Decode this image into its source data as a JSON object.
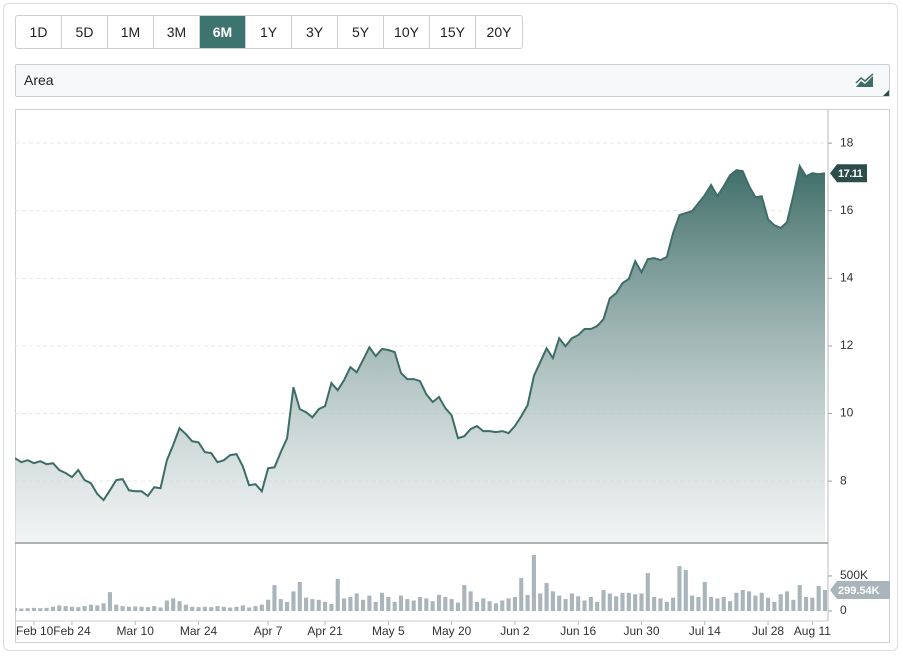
{
  "range_buttons": [
    {
      "label": "1D",
      "active": false
    },
    {
      "label": "5D",
      "active": false
    },
    {
      "label": "1M",
      "active": false
    },
    {
      "label": "3M",
      "active": false
    },
    {
      "label": "6M",
      "active": true
    },
    {
      "label": "1Y",
      "active": false
    },
    {
      "label": "3Y",
      "active": false
    },
    {
      "label": "5Y",
      "active": false
    },
    {
      "label": "10Y",
      "active": false
    },
    {
      "label": "15Y",
      "active": false
    },
    {
      "label": "20Y",
      "active": false
    }
  ],
  "chart_style": "Area",
  "chart_data": [
    {
      "type": "area",
      "color": "#3e6d68",
      "xlim": [
        0,
        128
      ],
      "ylim": [
        6.17,
        18.98
      ],
      "yticks": [
        8,
        10,
        12,
        14,
        16,
        18
      ],
      "grid": true,
      "values": [
        8.68,
        8.56,
        8.62,
        8.53,
        8.59,
        8.5,
        8.53,
        8.33,
        8.24,
        8.12,
        8.33,
        8.03,
        7.94,
        7.62,
        7.44,
        7.73,
        8.03,
        8.06,
        7.73,
        7.7,
        7.7,
        7.56,
        7.82,
        7.79,
        8.62,
        9.07,
        9.57,
        9.39,
        9.18,
        9.15,
        8.86,
        8.83,
        8.56,
        8.62,
        8.77,
        8.8,
        8.44,
        7.88,
        7.91,
        7.7,
        8.38,
        8.41,
        8.86,
        9.27,
        10.78,
        10.13,
        10.04,
        9.89,
        10.13,
        10.22,
        10.9,
        10.69,
        10.99,
        11.37,
        11.22,
        11.58,
        11.96,
        11.7,
        11.91,
        11.88,
        11.82,
        11.2,
        11.02,
        11.02,
        10.96,
        10.57,
        10.34,
        10.49,
        10.16,
        9.95,
        9.27,
        9.33,
        9.54,
        9.63,
        9.48,
        9.48,
        9.45,
        9.48,
        9.42,
        9.63,
        9.92,
        10.25,
        11.11,
        11.52,
        11.93,
        11.64,
        12.23,
        11.99,
        12.23,
        12.32,
        12.5,
        12.5,
        12.59,
        12.79,
        13.41,
        13.56,
        13.86,
        13.98,
        14.51,
        14.18,
        14.57,
        14.6,
        14.54,
        14.63,
        15.34,
        15.87,
        15.93,
        15.99,
        16.22,
        16.46,
        16.76,
        16.43,
        16.73,
        17.05,
        17.2,
        17.17,
        16.73,
        16.4,
        16.43,
        15.75,
        15.57,
        15.49,
        15.66,
        16.46,
        17.32,
        17.02,
        17.11,
        17.08,
        17.11
      ]
    },
    {
      "type": "bar",
      "color": "#a9b5ba",
      "xlim": [
        0,
        128
      ],
      "ylim": [
        0,
        970000
      ],
      "yticks": [
        0,
        {
          "value": 500000,
          "label": "500K"
        }
      ],
      "xticks": [
        {
          "value": 3,
          "label": "Feb 10"
        },
        {
          "value": 9,
          "label": "Feb 24"
        },
        {
          "value": 19,
          "label": "Mar 10"
        },
        {
          "value": 29,
          "label": "Mar 24"
        },
        {
          "value": 40,
          "label": "Apr 7"
        },
        {
          "value": 49,
          "label": "Apr 21"
        },
        {
          "value": 59,
          "label": "May 5"
        },
        {
          "value": 69,
          "label": "May 20"
        },
        {
          "value": 79,
          "label": "Jun 2"
        },
        {
          "value": 89,
          "label": "Jun 16"
        },
        {
          "value": 99,
          "label": "Jun 30"
        },
        {
          "value": 109,
          "label": "Jul 14"
        },
        {
          "value": 119,
          "label": "Jul 28"
        },
        {
          "value": 126,
          "label": "Aug 11"
        }
      ],
      "last_value_label": "299.54K",
      "values": [
        40000,
        35000,
        40000,
        45000,
        40000,
        45000,
        60000,
        80000,
        70000,
        60000,
        55000,
        70000,
        90000,
        80000,
        110000,
        270000,
        90000,
        70000,
        60000,
        65000,
        60000,
        55000,
        70000,
        50000,
        150000,
        180000,
        140000,
        90000,
        60000,
        55000,
        60000,
        55000,
        70000,
        60000,
        50000,
        60000,
        80000,
        50000,
        70000,
        90000,
        160000,
        370000,
        170000,
        130000,
        280000,
        415000,
        190000,
        170000,
        160000,
        130000,
        100000,
        457000,
        180000,
        200000,
        250000,
        160000,
        220000,
        130000,
        260000,
        200000,
        130000,
        220000,
        170000,
        150000,
        200000,
        180000,
        140000,
        230000,
        200000,
        170000,
        120000,
        370000,
        280000,
        130000,
        180000,
        140000,
        110000,
        150000,
        180000,
        200000,
        470000,
        230000,
        800000,
        250000,
        400000,
        280000,
        220000,
        170000,
        250000,
        210000,
        150000,
        200000,
        130000,
        300000,
        250000,
        210000,
        260000,
        260000,
        240000,
        250000,
        540000,
        200000,
        180000,
        130000,
        190000,
        640000,
        585000,
        220000,
        200000,
        415000,
        200000,
        180000,
        200000,
        140000,
        260000,
        300000,
        280000,
        220000,
        260000,
        190000,
        130000,
        240000,
        280000,
        160000,
        370000,
        200000,
        190000,
        357000,
        299540
      ]
    }
  ]
}
